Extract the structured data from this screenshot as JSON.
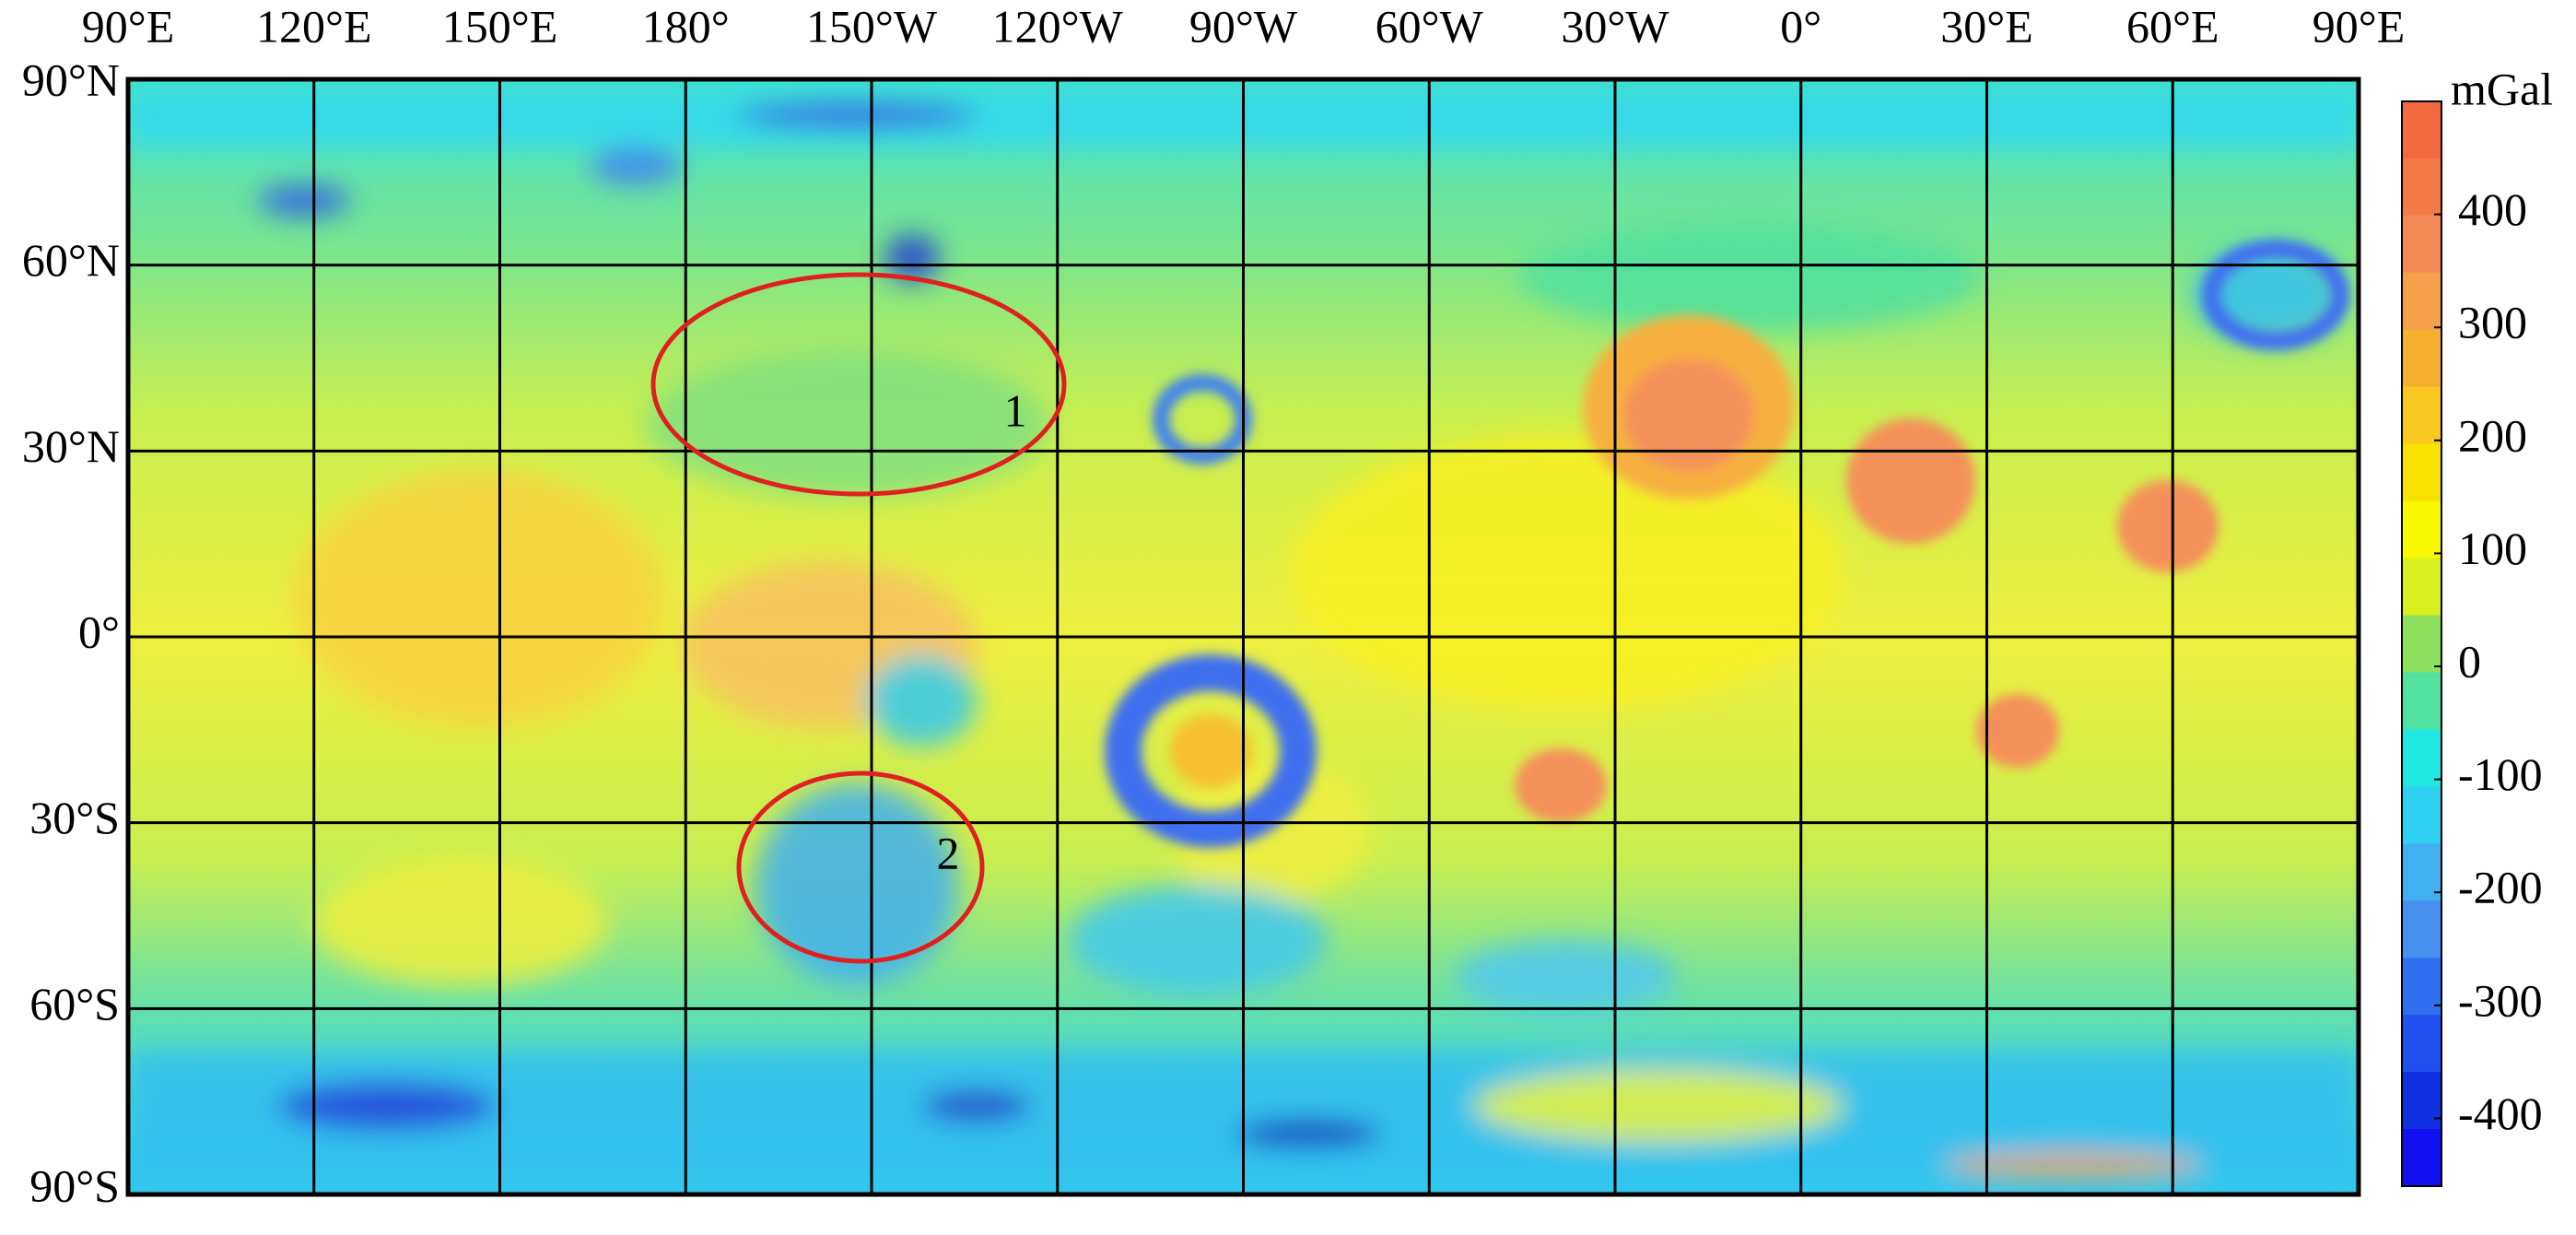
{
  "map": {
    "lon_labels": [
      "90°E",
      "120°E",
      "150°E",
      "180°",
      "150°W",
      "120°W",
      "90°W",
      "60°W",
      "30°W",
      "0°",
      "30°E",
      "60°E",
      "90°E"
    ],
    "lat_labels": [
      "90°N",
      "60°N",
      "30°N",
      "0°",
      "30°S",
      "60°S",
      "90°S"
    ],
    "colorbar": {
      "unit": "mGal",
      "range": [
        -460,
        500
      ],
      "ticks": [
        400,
        300,
        200,
        100,
        0,
        -100,
        -200,
        -300,
        -400
      ],
      "colors": [
        "#f46a40",
        "#f47a48",
        "#f48a58",
        "#f4a04a",
        "#f6b030",
        "#f8c820",
        "#f8e000",
        "#f8f800",
        "#d8f020",
        "#90e060",
        "#50e0a0",
        "#20e8e0",
        "#30d0f0",
        "#40b0f0",
        "#4890f0",
        "#3070f0",
        "#2050f0",
        "#1030e0",
        "#1010f0"
      ]
    },
    "annotations": [
      "1",
      "2"
    ]
  }
}
